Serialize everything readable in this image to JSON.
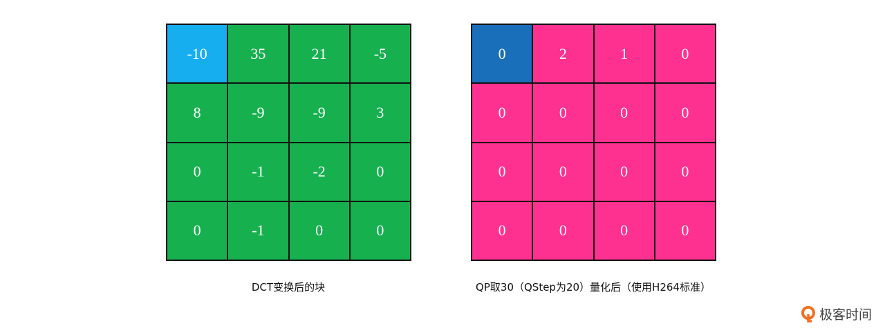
{
  "colors": {
    "dct_dc": "#16aeef",
    "dct": "#17b04f",
    "quant_dc": "#1a6fba",
    "quant": "#fe3090"
  },
  "dct_block": {
    "caption": "DCT变换后的块",
    "rows": [
      [
        "-10",
        "35",
        "21",
        "-5"
      ],
      [
        "8",
        "-9",
        "-9",
        "3"
      ],
      [
        "0",
        "-1",
        "-2",
        "0"
      ],
      [
        "0",
        "-1",
        "0",
        "0"
      ]
    ]
  },
  "quant_block": {
    "caption": "QP取30（QStep为20）量化后（使用H264标准）",
    "rows": [
      [
        "0",
        "2",
        "1",
        "0"
      ],
      [
        "0",
        "0",
        "0",
        "0"
      ],
      [
        "0",
        "0",
        "0",
        "0"
      ],
      [
        "0",
        "0",
        "0",
        "0"
      ]
    ]
  },
  "logo": {
    "text": "极客时间",
    "icon": "geektime-logo-icon"
  }
}
